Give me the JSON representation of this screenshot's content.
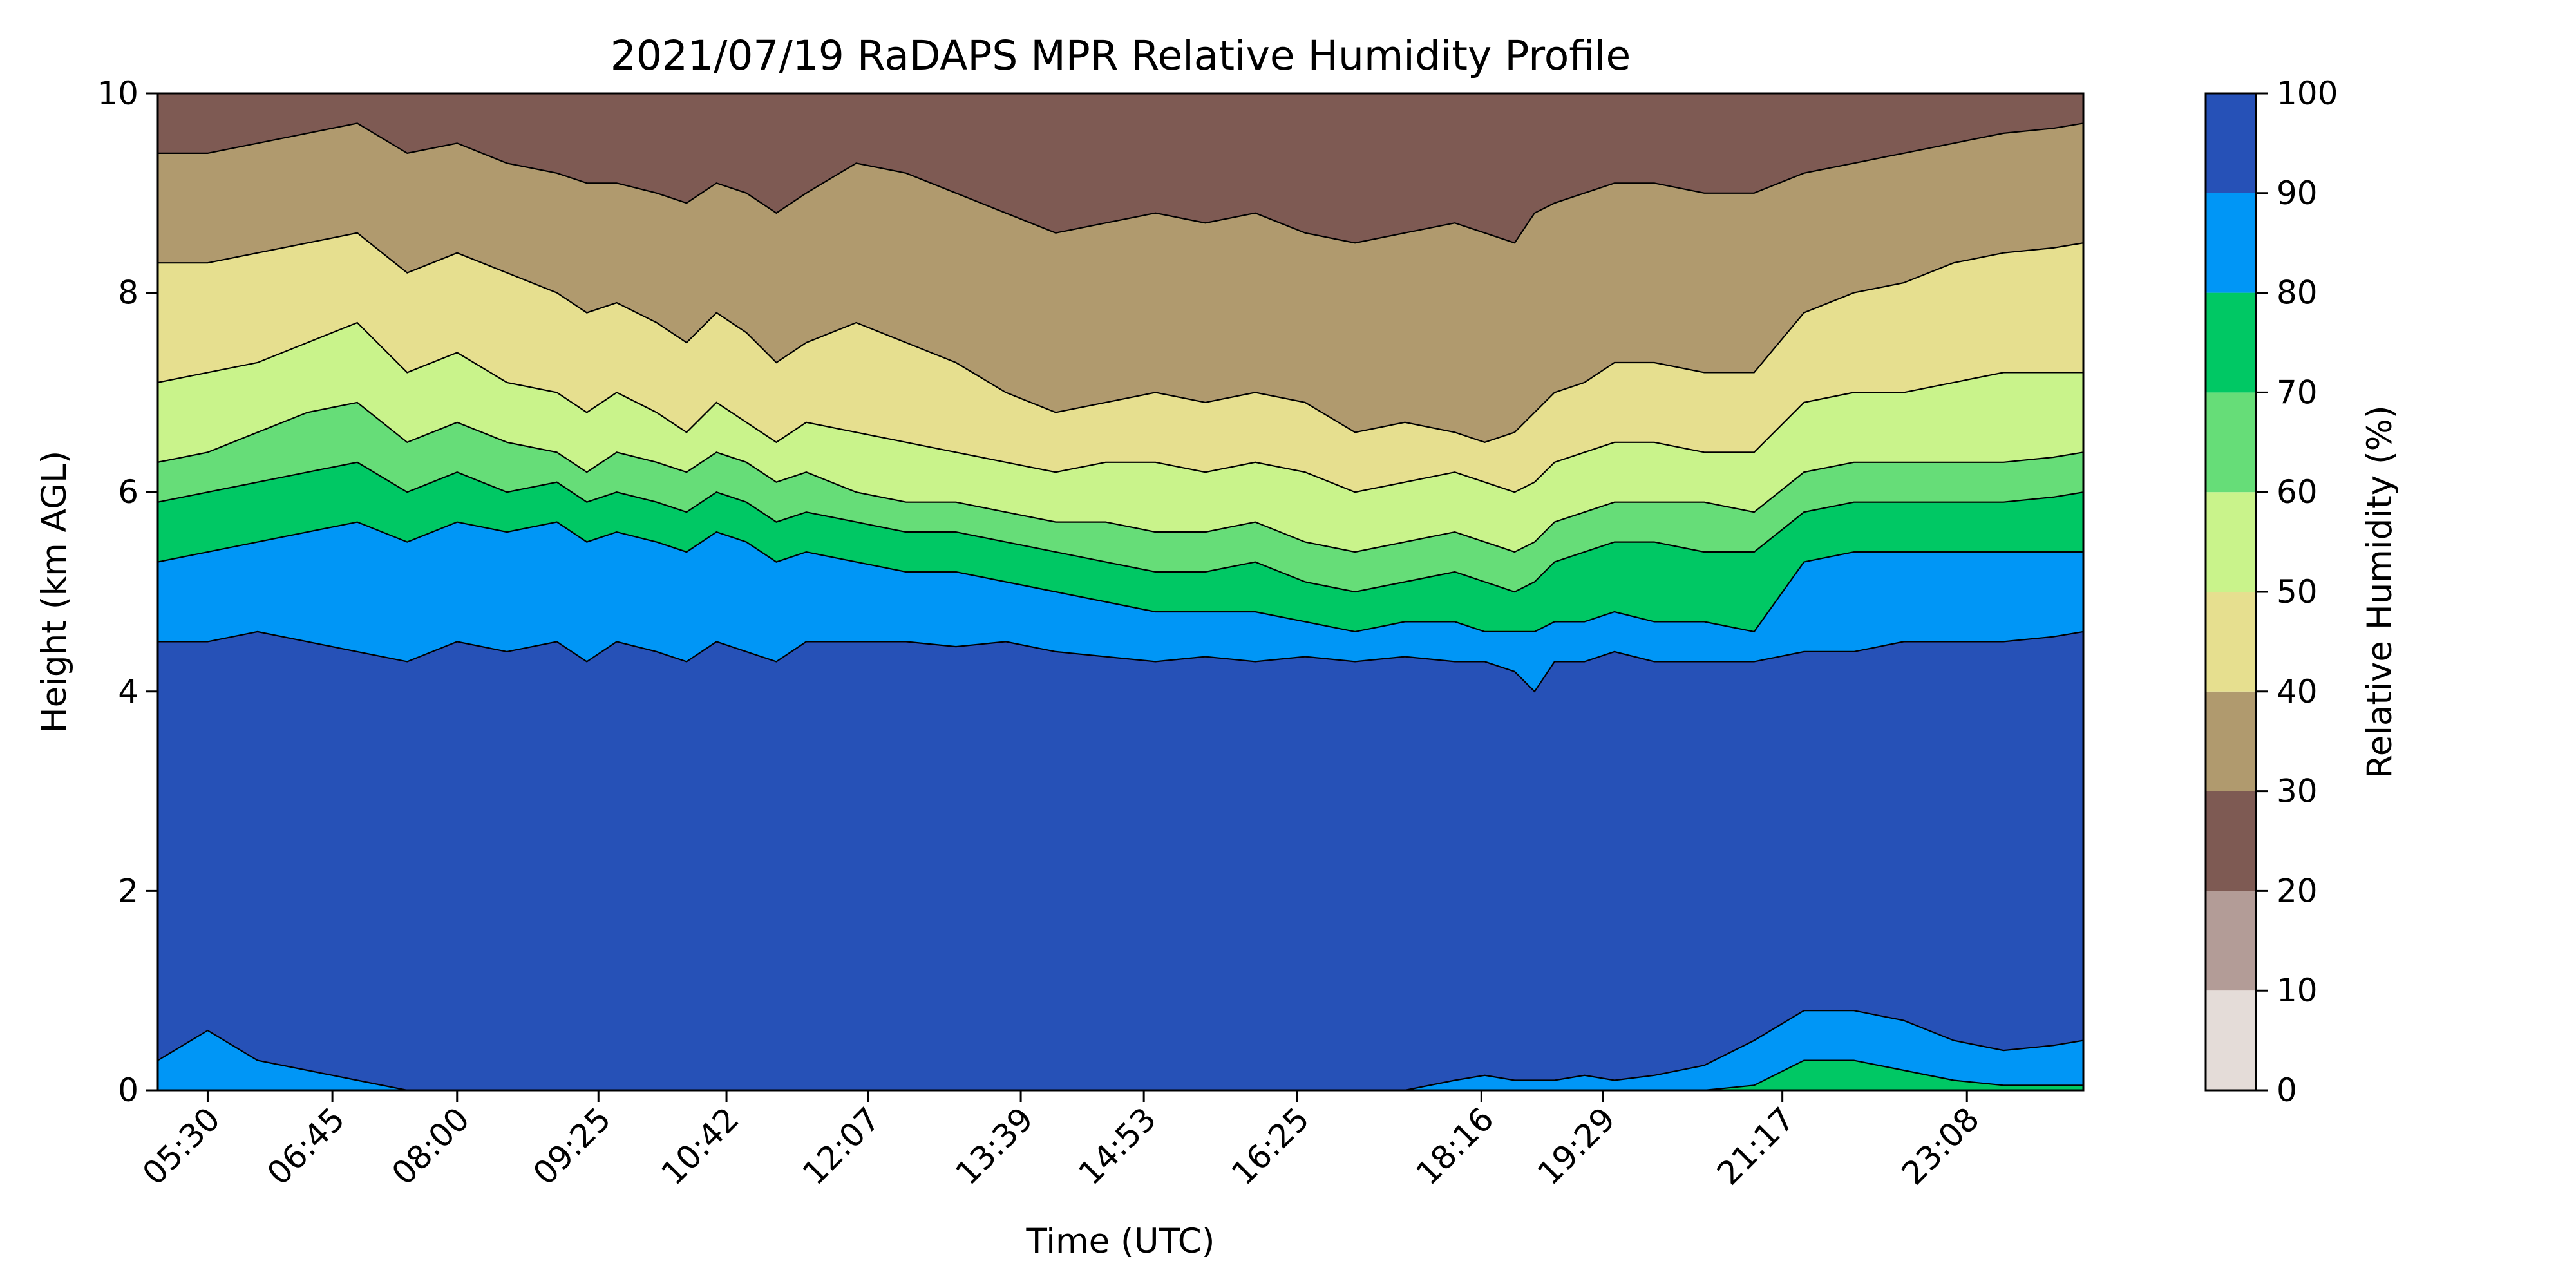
{
  "chart_data": {
    "type": "heatmap",
    "subtype": "filled-contour",
    "title": "2021/07/19 RaDAPS MPR Relative Humidity Profile",
    "xlabel": "Time (UTC)",
    "ylabel": "Height (km AGL)",
    "ylim": [
      0,
      10
    ],
    "yticks": [
      "0",
      "2",
      "4",
      "6",
      "8",
      "10"
    ],
    "xlim_hours": [
      5.0,
      24.3
    ],
    "xticks": [
      {
        "label": "05:30",
        "hour": 5.5
      },
      {
        "label": "06:45",
        "hour": 6.75
      },
      {
        "label": "08:00",
        "hour": 8.0
      },
      {
        "label": "09:25",
        "hour": 9.4167
      },
      {
        "label": "10:42",
        "hour": 10.7
      },
      {
        "label": "12:07",
        "hour": 12.1167
      },
      {
        "label": "13:39",
        "hour": 13.65
      },
      {
        "label": "14:53",
        "hour": 14.8833
      },
      {
        "label": "16:25",
        "hour": 16.4167
      },
      {
        "label": "18:16",
        "hour": 18.2667
      },
      {
        "label": "19:29",
        "hour": 19.4833
      },
      {
        "label": "21:17",
        "hour": 21.2833
      },
      {
        "label": "23:08",
        "hour": 23.1333
      }
    ],
    "colorbar": {
      "label": "Relative Humidity (%)",
      "levels": [
        0,
        10,
        20,
        30,
        40,
        50,
        60,
        70,
        80,
        90,
        100
      ],
      "tick_labels": [
        "0",
        "10",
        "20",
        "30",
        "40",
        "50",
        "60",
        "70",
        "80",
        "90",
        "100"
      ],
      "colors": [
        "#e4dcd8",
        "#b39c97",
        "#7e5a53",
        "#b09a6e",
        "#e6df8f",
        "#c9f38b",
        "#66dd78",
        "#00c864",
        "#0096f6",
        "#2651b7"
      ]
    },
    "contour_boundaries_km": {
      "hours": [
        5.0,
        5.5,
        6.0,
        6.5,
        7.0,
        7.5,
        8.0,
        8.5,
        9.0,
        9.3,
        9.6,
        10.0,
        10.3,
        10.6,
        10.9,
        11.2,
        11.5,
        12.0,
        12.5,
        13.0,
        13.5,
        14.0,
        14.5,
        15.0,
        15.5,
        16.0,
        16.5,
        17.0,
        17.5,
        18.0,
        18.3,
        18.6,
        18.8,
        19.0,
        19.3,
        19.6,
        20.0,
        20.5,
        21.0,
        21.5,
        22.0,
        22.5,
        23.0,
        23.5,
        24.0,
        24.3
      ],
      "rh90": [
        4.5,
        4.5,
        4.6,
        4.5,
        4.4,
        4.3,
        4.5,
        4.4,
        4.5,
        4.3,
        4.5,
        4.4,
        4.3,
        4.5,
        4.4,
        4.3,
        4.5,
        4.5,
        4.5,
        4.45,
        4.5,
        4.4,
        4.35,
        4.3,
        4.35,
        4.3,
        4.35,
        4.3,
        4.35,
        4.3,
        4.3,
        4.2,
        4.0,
        4.3,
        4.3,
        4.4,
        4.3,
        4.3,
        4.3,
        4.4,
        4.4,
        4.5,
        4.5,
        4.5,
        4.55,
        4.6
      ],
      "rh80": [
        5.3,
        5.4,
        5.5,
        5.6,
        5.7,
        5.5,
        5.7,
        5.6,
        5.7,
        5.5,
        5.6,
        5.5,
        5.4,
        5.6,
        5.5,
        5.3,
        5.4,
        5.3,
        5.2,
        5.2,
        5.1,
        5.0,
        4.9,
        4.8,
        4.8,
        4.8,
        4.7,
        4.6,
        4.7,
        4.7,
        4.6,
        4.6,
        4.6,
        4.7,
        4.7,
        4.8,
        4.7,
        4.7,
        4.6,
        5.3,
        5.4,
        5.4,
        5.4,
        5.4,
        5.4,
        5.4
      ],
      "rh70": [
        5.9,
        6.0,
        6.1,
        6.2,
        6.3,
        6.0,
        6.2,
        6.0,
        6.1,
        5.9,
        6.0,
        5.9,
        5.8,
        6.0,
        5.9,
        5.7,
        5.8,
        5.7,
        5.6,
        5.6,
        5.5,
        5.4,
        5.3,
        5.2,
        5.2,
        5.3,
        5.1,
        5.0,
        5.1,
        5.2,
        5.1,
        5.0,
        5.1,
        5.3,
        5.4,
        5.5,
        5.5,
        5.4,
        5.4,
        5.8,
        5.9,
        5.9,
        5.9,
        5.9,
        5.95,
        6.0
      ],
      "rh60": [
        6.3,
        6.4,
        6.6,
        6.8,
        6.9,
        6.5,
        6.7,
        6.5,
        6.4,
        6.2,
        6.4,
        6.3,
        6.2,
        6.4,
        6.3,
        6.1,
        6.2,
        6.0,
        5.9,
        5.9,
        5.8,
        5.7,
        5.7,
        5.6,
        5.6,
        5.7,
        5.5,
        5.4,
        5.5,
        5.6,
        5.5,
        5.4,
        5.5,
        5.7,
        5.8,
        5.9,
        5.9,
        5.9,
        5.8,
        6.2,
        6.3,
        6.3,
        6.3,
        6.3,
        6.35,
        6.4
      ],
      "rh50": [
        7.1,
        7.2,
        7.3,
        7.5,
        7.7,
        7.2,
        7.4,
        7.1,
        7.0,
        6.8,
        7.0,
        6.8,
        6.6,
        6.9,
        6.7,
        6.5,
        6.7,
        6.6,
        6.5,
        6.4,
        6.3,
        6.2,
        6.3,
        6.3,
        6.2,
        6.3,
        6.2,
        6.0,
        6.1,
        6.2,
        6.1,
        6.0,
        6.1,
        6.3,
        6.4,
        6.5,
        6.5,
        6.4,
        6.4,
        6.9,
        7.0,
        7.0,
        7.1,
        7.2,
        7.2,
        7.2
      ],
      "rh40": [
        8.3,
        8.3,
        8.4,
        8.5,
        8.6,
        8.2,
        8.4,
        8.2,
        8.0,
        7.8,
        7.9,
        7.7,
        7.5,
        7.8,
        7.6,
        7.3,
        7.5,
        7.7,
        7.5,
        7.3,
        7.0,
        6.8,
        6.9,
        7.0,
        6.9,
        7.0,
        6.9,
        6.6,
        6.7,
        6.6,
        6.5,
        6.6,
        6.8,
        7.0,
        7.1,
        7.3,
        7.3,
        7.2,
        7.2,
        7.8,
        8.0,
        8.1,
        8.3,
        8.4,
        8.45,
        8.5
      ],
      "rh30": [
        9.4,
        9.4,
        9.5,
        9.6,
        9.7,
        9.4,
        9.5,
        9.3,
        9.2,
        9.1,
        9.1,
        9.0,
        8.9,
        9.1,
        9.0,
        8.8,
        9.0,
        9.3,
        9.2,
        9.0,
        8.8,
        8.6,
        8.7,
        8.8,
        8.7,
        8.8,
        8.6,
        8.5,
        8.6,
        8.7,
        8.6,
        8.5,
        8.8,
        8.9,
        9.0,
        9.1,
        9.1,
        9.0,
        9.0,
        9.2,
        9.3,
        9.4,
        9.5,
        9.6,
        9.65,
        9.7
      ],
      "low_rh80": [
        0.3,
        0.6,
        0.3,
        0.2,
        0.1,
        0.0,
        0.0,
        0.0,
        0.0,
        0.0,
        0.0,
        0.0,
        0.0,
        0.0,
        0.0,
        0.0,
        0.0,
        0.0,
        0.0,
        0.0,
        0.0,
        0.0,
        0.0,
        0.0,
        0.0,
        0.0,
        0.0,
        0.0,
        0.0,
        0.1,
        0.15,
        0.1,
        0.1,
        0.1,
        0.15,
        0.1,
        0.15,
        0.25,
        0.5,
        0.8,
        0.8,
        0.7,
        0.5,
        0.4,
        0.45,
        0.5
      ],
      "low_rh70": [
        0.0,
        0.0,
        0.0,
        0.0,
        0.0,
        0.0,
        0.0,
        0.0,
        0.0,
        0.0,
        0.0,
        0.0,
        0.0,
        0.0,
        0.0,
        0.0,
        0.0,
        0.0,
        0.0,
        0.0,
        0.0,
        0.0,
        0.0,
        0.0,
        0.0,
        0.0,
        0.0,
        0.0,
        0.0,
        0.0,
        0.0,
        0.0,
        0.0,
        0.0,
        0.0,
        0.0,
        0.0,
        0.0,
        0.05,
        0.3,
        0.3,
        0.2,
        0.1,
        0.05,
        0.05,
        0.05
      ]
    }
  }
}
